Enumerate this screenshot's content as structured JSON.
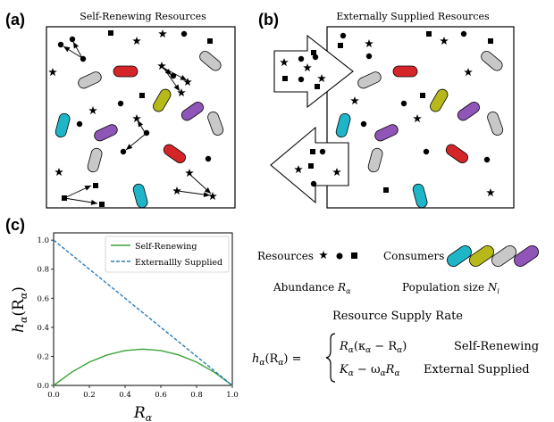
{
  "panels": {
    "a": {
      "label": "(a)",
      "title": "Self-Renewing Resources"
    },
    "b": {
      "label": "(b)",
      "title": "Externally Supplied Resources"
    },
    "c": {
      "label": "(c)"
    }
  },
  "colors": {
    "cyan": "#1fb5c8",
    "olive": "#b7b91a",
    "gray": "#c8c8c8",
    "purple": "#8f55b7",
    "red": "#d62528",
    "self_renewing_line": "#3aa33a",
    "external_line": "#2f7db8"
  },
  "chart_data": {
    "type": "line",
    "x": [
      0.0,
      0.1,
      0.2,
      0.3,
      0.4,
      0.5,
      0.6,
      0.7,
      0.8,
      0.9,
      1.0
    ],
    "series": [
      {
        "name": "Self-Renewing",
        "values": [
          0.0,
          0.09,
          0.16,
          0.21,
          0.24,
          0.25,
          0.24,
          0.21,
          0.16,
          0.09,
          0.0
        ]
      },
      {
        "name": "Externallly Supplied",
        "values": [
          1.0,
          0.9,
          0.8,
          0.7,
          0.6,
          0.5,
          0.4,
          0.3,
          0.2,
          0.1,
          0.0
        ]
      }
    ],
    "xticks": [
      "0.0",
      "0.2",
      "0.4",
      "0.6",
      "0.8",
      "1.0"
    ],
    "yticks": [
      "0.0",
      "0.2",
      "0.4",
      "0.6",
      "0.8",
      "1.0"
    ],
    "xlim": [
      0,
      1
    ],
    "ylim": [
      0,
      1.05
    ],
    "xlabel": "R",
    "xlabel_sub": "α",
    "ylabel": "h",
    "ylabel_sub": "α",
    "ylabel_arg": "(R",
    "ylabel_arg_sub": "α",
    "ylabel_close": ")",
    "legend_position": "top-right",
    "grid": false
  },
  "legend_text": {
    "resources": "Resources",
    "consumers": "Consumers",
    "abundance": "Abundance",
    "abundance_var": "R",
    "abundance_sub": "α",
    "population": "Population size",
    "population_var": "N",
    "population_sub": "i"
  },
  "equation": {
    "title": "Resource Supply Rate",
    "lhs": "h",
    "lhs_sub": "α",
    "lhs_arg": "(R",
    "lhs_arg_sub": "α",
    "lhs_close": ") =",
    "case1": "R",
    "case1_sub": "α",
    "case1_rest": "(κ",
    "case1_rest_sub": "α",
    "case1_minus": " − R",
    "case1_minus_sub": "α",
    "case1_close": ")",
    "case1_label": "Self-Renewing",
    "case2": "K",
    "case2_sub": "α",
    "case2_minus": " − ω",
    "case2_minus_sub": "α",
    "case2_r": "R",
    "case2_r_sub": "α",
    "case2_label": "External Supplied"
  }
}
